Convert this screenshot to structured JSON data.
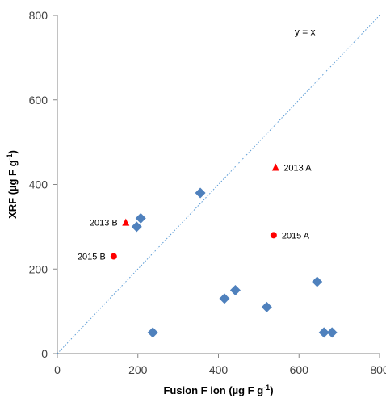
{
  "chart_data": {
    "type": "scatter",
    "xlabel": "Fusion F ion (µg F g-1)",
    "ylabel": "XRF (µg F g-1)",
    "xlim": [
      0,
      800
    ],
    "ylim": [
      0,
      800
    ],
    "x_ticks": [
      "0",
      "200",
      "400",
      "600",
      "800"
    ],
    "y_ticks": [
      "0",
      "200",
      "400",
      "600",
      "800"
    ],
    "grid": false,
    "reference_line": {
      "label": "y = x",
      "slope": 1,
      "intercept": 0,
      "style": "dotted",
      "color": "#5b9bd5"
    },
    "series": [
      {
        "marker": "diamond",
        "color": "#4f81bd",
        "points": [
          {
            "x": 197,
            "y": 300
          },
          {
            "x": 207,
            "y": 320
          },
          {
            "x": 237,
            "y": 50
          },
          {
            "x": 355,
            "y": 380
          },
          {
            "x": 415,
            "y": 130
          },
          {
            "x": 442,
            "y": 150
          },
          {
            "x": 520,
            "y": 110
          },
          {
            "x": 645,
            "y": 170
          },
          {
            "x": 662,
            "y": 50
          },
          {
            "x": 682,
            "y": 50
          }
        ]
      },
      {
        "marker": "triangle",
        "color": "#ff0000",
        "points": [
          {
            "x": 170,
            "y": 310,
            "label": "2013 B"
          },
          {
            "x": 542,
            "y": 440,
            "label": "2013 A"
          }
        ]
      },
      {
        "marker": "circle",
        "color": "#ff0000",
        "points": [
          {
            "x": 140,
            "y": 230,
            "label": "2015 B"
          },
          {
            "x": 537,
            "y": 280,
            "label": "2015 A"
          }
        ]
      }
    ]
  }
}
